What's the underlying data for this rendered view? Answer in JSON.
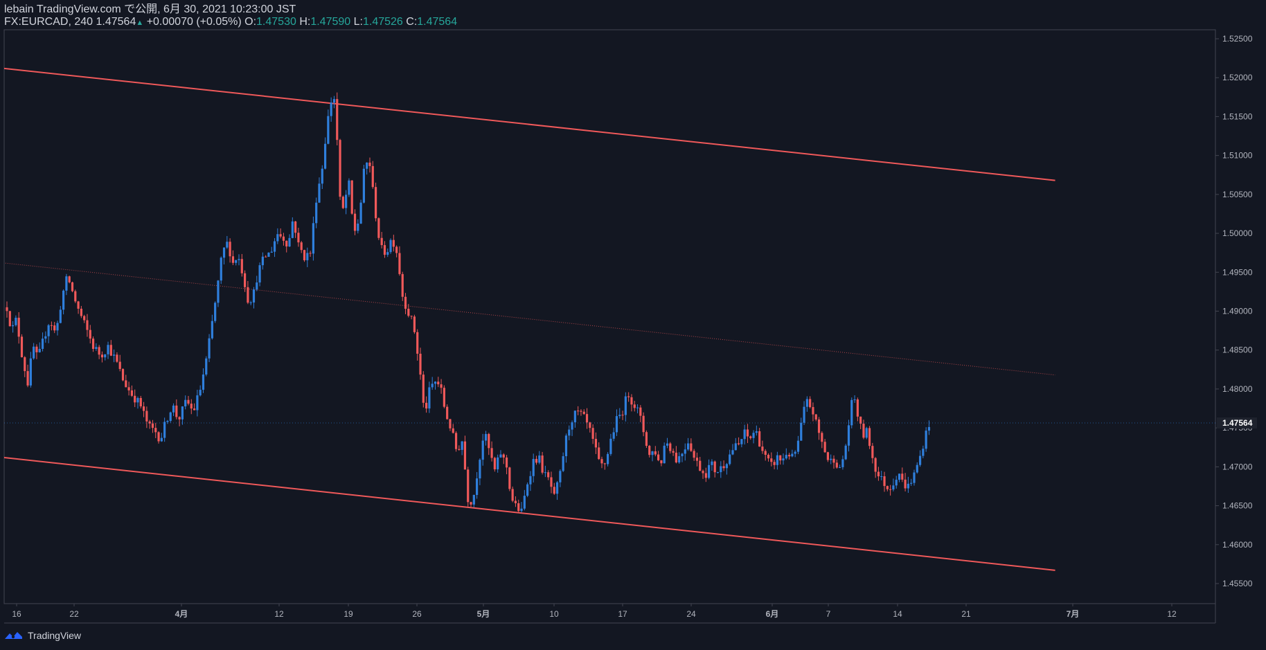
{
  "header": {
    "line1": "lebain TradingView.com で公開, 6月 30, 2021 10:23:00 JST",
    "symbol": "FX:EURCAD, 240",
    "last": "1.47564",
    "change_arrow": "▲",
    "change": "+0.00070 (+0.05%)",
    "o_label": "O:",
    "o": "1.47530",
    "h_label": "H:",
    "h": "1.47590",
    "l_label": "L:",
    "l": "1.47526",
    "c_label": "C:",
    "c": "1.47564"
  },
  "footer": {
    "brand": "TradingView",
    "logo_icon": "tradingview-logo-icon"
  },
  "colors": {
    "background": "#131722",
    "up": "#2f7fdc",
    "down": "#f0595a",
    "channel": "#f0595a",
    "axis_text": "#b2b5be",
    "quote_green": "#26a69a"
  },
  "chart_data": {
    "type": "candlestick",
    "symbol": "FX:EURCAD",
    "timeframe": "240",
    "ylim": [
      1.4525,
      1.5265
    ],
    "y_ticks": [
      "1.52500",
      "1.52000",
      "1.51500",
      "1.51000",
      "1.50500",
      "1.50000",
      "1.49500",
      "1.49000",
      "1.48500",
      "1.48000",
      "1.47500",
      "1.47000",
      "1.46500",
      "1.46000",
      "1.45500"
    ],
    "x_ticks": [
      {
        "label": "16",
        "bold": false
      },
      {
        "label": "22",
        "bold": false
      },
      {
        "label": "4月",
        "bold": true
      },
      {
        "label": "12",
        "bold": false
      },
      {
        "label": "19",
        "bold": false
      },
      {
        "label": "26",
        "bold": false
      },
      {
        "label": "5月",
        "bold": true
      },
      {
        "label": "10",
        "bold": false
      },
      {
        "label": "17",
        "bold": false
      },
      {
        "label": "24",
        "bold": false
      },
      {
        "label": "6月",
        "bold": true
      },
      {
        "label": "7",
        "bold": false
      },
      {
        "label": "14",
        "bold": false
      },
      {
        "label": "21",
        "bold": false
      },
      {
        "label": "7月",
        "bold": true
      },
      {
        "label": "12",
        "bold": false
      }
    ],
    "last_price": "1.47564",
    "price_path": [
      [
        0,
        1.4905
      ],
      [
        0.8,
        1.4875
      ],
      [
        1.6,
        1.489
      ],
      [
        2.6,
        1.484
      ],
      [
        3.5,
        1.4808
      ],
      [
        4.4,
        1.4855
      ],
      [
        5.2,
        1.4838
      ],
      [
        6.2,
        1.4865
      ],
      [
        7.2,
        1.489
      ],
      [
        8.2,
        1.487
      ],
      [
        9.3,
        1.492
      ],
      [
        10.2,
        1.4945
      ],
      [
        11.2,
        1.492
      ],
      [
        12.1,
        1.49
      ],
      [
        13.2,
        1.488
      ],
      [
        14.5,
        1.4855
      ],
      [
        15.8,
        1.4843
      ],
      [
        17.0,
        1.4855
      ],
      [
        18.4,
        1.4835
      ],
      [
        19.6,
        1.481
      ],
      [
        20.8,
        1.4795
      ],
      [
        22.4,
        1.478
      ],
      [
        23.8,
        1.4752
      ],
      [
        25.0,
        1.4745
      ],
      [
        25.8,
        1.4735
      ],
      [
        26.8,
        1.476
      ],
      [
        27.8,
        1.478
      ],
      [
        28.8,
        1.476
      ],
      [
        30.2,
        1.4785
      ],
      [
        31.3,
        1.477
      ],
      [
        32.5,
        1.48
      ],
      [
        33.6,
        1.484
      ],
      [
        34.4,
        1.488
      ],
      [
        35.2,
        1.492
      ],
      [
        36.2,
        1.4975
      ],
      [
        37.1,
        1.4988
      ],
      [
        38.0,
        1.4962
      ],
      [
        38.8,
        1.4972
      ],
      [
        39.6,
        1.495
      ],
      [
        40.6,
        1.4912
      ],
      [
        41.4,
        1.492
      ],
      [
        42.2,
        1.495
      ],
      [
        43.3,
        1.497
      ],
      [
        44.3,
        1.4975
      ],
      [
        45.4,
        1.5
      ],
      [
        46.4,
        1.4995
      ],
      [
        47.3,
        1.4985
      ],
      [
        48.1,
        1.502
      ],
      [
        49.0,
        1.4985
      ],
      [
        50.0,
        1.497
      ],
      [
        51.0,
        1.4975
      ],
      [
        52.0,
        1.5045
      ],
      [
        53.0,
        1.5085
      ],
      [
        53.8,
        1.514
      ],
      [
        54.5,
        1.517
      ],
      [
        55.2,
        1.5175
      ],
      [
        55.9,
        1.5045
      ],
      [
        56.6,
        1.5028
      ],
      [
        57.4,
        1.507
      ],
      [
        58.3,
        1.5
      ],
      [
        59.2,
        1.5018
      ],
      [
        60.1,
        1.5085
      ],
      [
        60.9,
        1.5095
      ],
      [
        61.8,
        1.5035
      ],
      [
        62.8,
        1.498
      ],
      [
        63.8,
        1.4975
      ],
      [
        64.7,
        1.4995
      ],
      [
        65.6,
        1.4975
      ],
      [
        66.5,
        1.492
      ],
      [
        67.4,
        1.49
      ],
      [
        68.4,
        1.488
      ],
      [
        69.4,
        1.4825
      ],
      [
        70.2,
        1.4765
      ],
      [
        70.9,
        1.4795
      ],
      [
        71.8,
        1.481
      ],
      [
        72.8,
        1.4805
      ],
      [
        73.7,
        1.477
      ],
      [
        74.6,
        1.475
      ],
      [
        75.6,
        1.472
      ],
      [
        76.6,
        1.4735
      ],
      [
        77.4,
        1.466
      ],
      [
        78.3,
        1.4655
      ],
      [
        79.2,
        1.47
      ],
      [
        80.2,
        1.4745
      ],
      [
        81.1,
        1.472
      ],
      [
        82.0,
        1.4695
      ],
      [
        83.0,
        1.4718
      ],
      [
        84.0,
        1.47
      ],
      [
        84.8,
        1.466
      ],
      [
        85.6,
        1.4648
      ],
      [
        86.5,
        1.4642
      ],
      [
        87.5,
        1.468
      ],
      [
        88.5,
        1.4708
      ],
      [
        89.4,
        1.4712
      ],
      [
        90.3,
        1.469
      ],
      [
        91.2,
        1.4682
      ],
      [
        92.0,
        1.466
      ],
      [
        93.0,
        1.469
      ],
      [
        93.8,
        1.473
      ],
      [
        94.8,
        1.476
      ],
      [
        95.8,
        1.477
      ],
      [
        96.8,
        1.4765
      ],
      [
        97.8,
        1.475
      ],
      [
        98.8,
        1.4725
      ],
      [
        99.7,
        1.47
      ],
      [
        100.6,
        1.4705
      ],
      [
        101.6,
        1.4738
      ],
      [
        102.5,
        1.476
      ],
      [
        103.4,
        1.477
      ],
      [
        104.4,
        1.4795
      ],
      [
        105.2,
        1.4783
      ],
      [
        106.2,
        1.477
      ],
      [
        107.2,
        1.474
      ],
      [
        108.0,
        1.4715
      ],
      [
        108.9,
        1.4722
      ],
      [
        109.8,
        1.47
      ],
      [
        110.7,
        1.4735
      ],
      [
        111.7,
        1.4723
      ],
      [
        112.6,
        1.4708
      ],
      [
        113.6,
        1.472
      ],
      [
        114.6,
        1.4735
      ],
      [
        115.5,
        1.4712
      ],
      [
        116.4,
        1.47
      ],
      [
        117.4,
        1.469
      ],
      [
        118.3,
        1.4705
      ],
      [
        119.2,
        1.4693
      ],
      [
        120.2,
        1.47
      ],
      [
        121.1,
        1.471
      ],
      [
        122.0,
        1.4723
      ],
      [
        123.0,
        1.4728
      ],
      [
        124.0,
        1.4743
      ],
      [
        124.8,
        1.4735
      ],
      [
        125.8,
        1.4748
      ],
      [
        126.8,
        1.4725
      ],
      [
        127.6,
        1.471
      ],
      [
        128.6,
        1.47
      ],
      [
        129.4,
        1.4712
      ],
      [
        130.3,
        1.4708
      ],
      [
        131.2,
        1.472
      ],
      [
        132.1,
        1.471
      ],
      [
        133.0,
        1.473
      ],
      [
        133.8,
        1.4768
      ],
      [
        134.6,
        1.4785
      ],
      [
        135.5,
        1.477
      ],
      [
        136.4,
        1.4745
      ],
      [
        137.3,
        1.4725
      ],
      [
        138.2,
        1.4705
      ],
      [
        139.1,
        1.4712
      ],
      [
        140.0,
        1.4695
      ],
      [
        140.9,
        1.4722
      ],
      [
        141.6,
        1.476
      ],
      [
        142.3,
        1.4795
      ],
      [
        142.9,
        1.477
      ],
      [
        143.8,
        1.474
      ],
      [
        144.6,
        1.4745
      ],
      [
        145.4,
        1.4715
      ],
      [
        146.3,
        1.469
      ],
      [
        147.2,
        1.4682
      ],
      [
        148.1,
        1.4672
      ],
      [
        149.0,
        1.468
      ],
      [
        149.9,
        1.4695
      ],
      [
        150.6,
        1.4678
      ],
      [
        151.5,
        1.4675
      ],
      [
        152.5,
        1.469
      ],
      [
        153.4,
        1.471
      ],
      [
        154.2,
        1.4735
      ],
      [
        155.0,
        1.4756
      ]
    ],
    "overlays": {
      "channel_upper": {
        "x0": -0.6,
        "y0": 1.5212,
        "x1": 176.2,
        "y1": 1.5068
      },
      "channel_mid": {
        "x0": -0.6,
        "y0": 1.4962,
        "x1": 176.2,
        "y1": 1.4818
      },
      "channel_lower": {
        "x0": -0.6,
        "y0": 1.4712,
        "x1": 176.2,
        "y1": 1.4567
      }
    }
  }
}
